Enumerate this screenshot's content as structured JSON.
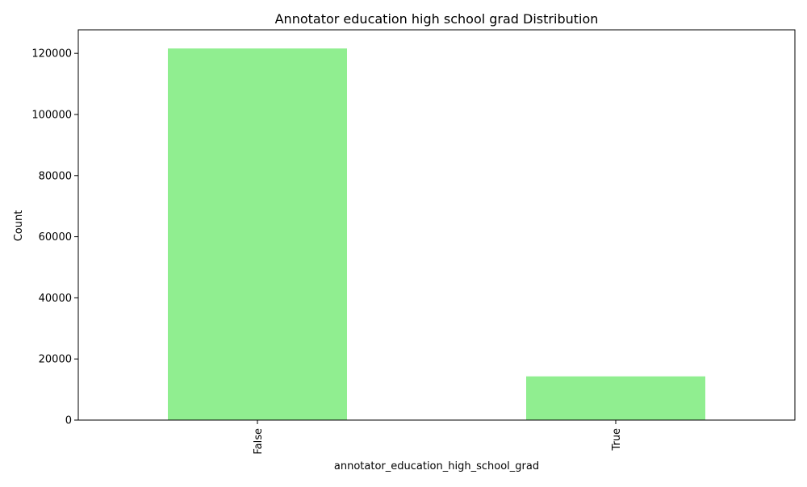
{
  "chart_data": {
    "type": "bar",
    "title": "Annotator education high school grad Distribution",
    "xlabel": "annotator_education_high_school_grad",
    "ylabel": "Count",
    "categories": [
      "False",
      "True"
    ],
    "values": [
      121600,
      14300
    ],
    "ylim": [
      0,
      127700
    ],
    "yticks": [
      0,
      20000,
      40000,
      60000,
      80000,
      100000,
      120000
    ],
    "grid": false,
    "legend": "none",
    "bar_color": "#90ee90"
  }
}
